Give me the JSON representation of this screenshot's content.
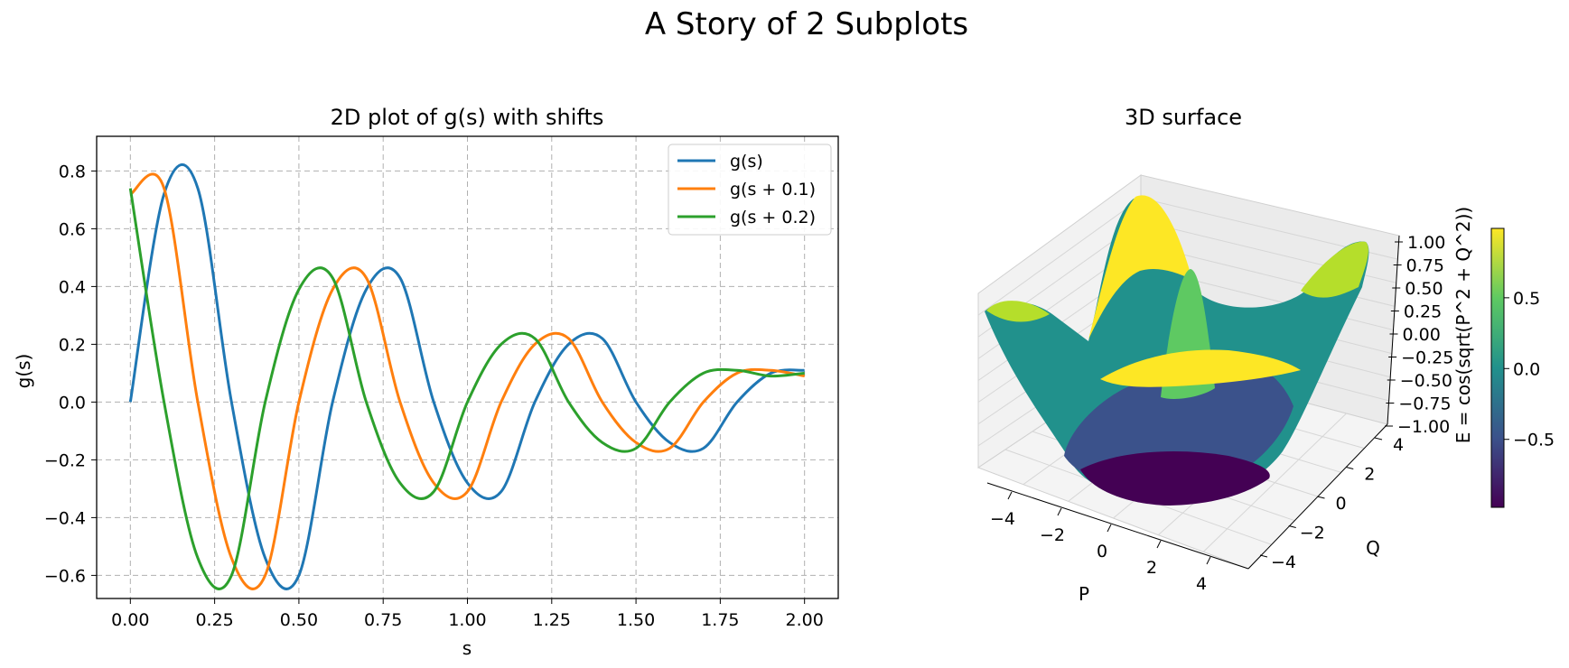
{
  "suptitle": "A Story of 2 Subplots",
  "chart_data": [
    {
      "type": "line",
      "title": "2D plot of g(s) with shifts",
      "xlabel": "s",
      "ylabel": "g(s)",
      "xlim": [
        -0.1,
        2.1
      ],
      "ylim": [
        -0.68,
        0.92
      ],
      "x_ticks": [
        0.0,
        0.25,
        0.5,
        0.75,
        1.0,
        1.25,
        1.5,
        1.75,
        2.0
      ],
      "x_tick_labels": [
        "0.00",
        "0.25",
        "0.50",
        "0.75",
        "1.00",
        "1.25",
        "1.50",
        "1.75",
        "2.00"
      ],
      "y_ticks": [
        -0.6,
        -0.4,
        -0.2,
        0.0,
        0.2,
        0.4,
        0.6,
        0.8
      ],
      "y_tick_labels": [
        "−0.6",
        "−0.4",
        "−0.2",
        "0.0",
        "0.2",
        "0.4",
        "0.6",
        "0.8"
      ],
      "grid": true,
      "legend_position": "upper-right",
      "x": [
        0.0,
        0.1,
        0.2,
        0.3,
        0.4,
        0.5,
        0.6,
        0.7,
        0.8,
        0.9,
        1.0,
        1.1,
        1.2,
        1.3,
        1.4,
        1.5,
        1.6,
        1.7,
        1.8,
        1.9,
        2.0
      ],
      "series": [
        {
          "name": "g(s)",
          "color": "#1f77b4",
          "values": [
            0.0,
            0.72,
            0.74,
            0.0,
            -0.54,
            -0.6,
            0.0,
            0.39,
            0.43,
            0.0,
            -0.28,
            -0.31,
            0.0,
            0.2,
            0.22,
            0.0,
            -0.14,
            -0.16,
            0.0,
            0.1,
            0.11
          ]
        },
        {
          "name": "g(s + 0.1)",
          "color": "#ff7f0e",
          "values": [
            0.72,
            0.74,
            0.0,
            -0.54,
            -0.6,
            0.0,
            0.39,
            0.43,
            0.0,
            -0.28,
            -0.31,
            0.0,
            0.2,
            0.22,
            0.0,
            -0.14,
            -0.16,
            0.0,
            0.1,
            0.11,
            0.09
          ]
        },
        {
          "name": "g(s + 0.2)",
          "color": "#2ca02c",
          "values": [
            0.74,
            0.0,
            -0.54,
            -0.6,
            0.0,
            0.39,
            0.43,
            0.0,
            -0.28,
            -0.31,
            0.0,
            0.2,
            0.22,
            0.0,
            -0.14,
            -0.16,
            0.0,
            0.1,
            0.11,
            0.09,
            0.1
          ]
        }
      ]
    },
    {
      "type": "surface",
      "title": "3D surface",
      "xlabel": "P",
      "ylabel": "Q",
      "zlabel": "E = cos(sqrt(P^2 + Q^2))",
      "colormap": "viridis",
      "colormap_stops": [
        "#440154",
        "#3b528b",
        "#21918c",
        "#5ec962",
        "#fde725"
      ],
      "x_ticks": [
        -4,
        -2,
        0,
        2,
        4
      ],
      "x_tick_labels": [
        "−4",
        "−2",
        "0",
        "2",
        "4"
      ],
      "y_ticks": [
        -4,
        -2,
        0,
        2,
        4
      ],
      "y_tick_labels": [
        "−4",
        "−2",
        "0",
        "2",
        "4"
      ],
      "z_ticks": [
        -1.0,
        -0.75,
        -0.5,
        -0.25,
        0.0,
        0.25,
        0.5,
        0.75,
        1.0
      ],
      "z_tick_labels": [
        "−1.00",
        "−0.75",
        "−0.50",
        "−0.25",
        "0.00",
        "0.25",
        "0.50",
        "0.75",
        "1.00"
      ],
      "zlim": [
        -1.0,
        1.0
      ],
      "colorbar": {
        "range": [
          -0.98,
          0.99
        ],
        "ticks": [
          -0.5,
          0.0,
          0.5
        ],
        "tick_labels": [
          "−0.5",
          "0.0",
          "0.5"
        ]
      }
    }
  ]
}
